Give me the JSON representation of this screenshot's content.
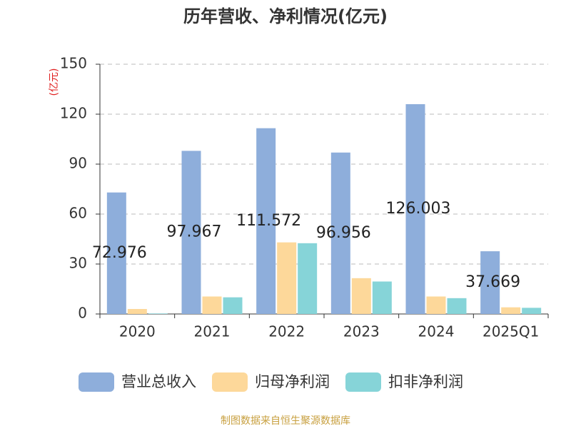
{
  "chart_data": {
    "type": "bar",
    "title": "历年营收、净利情况(亿元)",
    "y_label": "(亿元)",
    "categories": [
      "2020",
      "2021",
      "2022",
      "2023",
      "2024",
      "2025Q1"
    ],
    "series": [
      {
        "name": "营业总收入",
        "color": "#8eaedb",
        "values": [
          72.976,
          97.967,
          111.572,
          96.956,
          126.003,
          37.669
        ]
      },
      {
        "name": "归母净利润",
        "color": "#fdd89a",
        "values": [
          3,
          10.5,
          43,
          21.5,
          10.5,
          4
        ]
      },
      {
        "name": "扣非净利润",
        "color": "#86d4d8",
        "values": [
          0.3,
          10,
          42.5,
          19.5,
          9.5,
          3.7
        ]
      }
    ],
    "ylim": [
      0,
      150
    ],
    "yticks": [
      0,
      30,
      60,
      90,
      120,
      150
    ],
    "grid": true,
    "source": "制图数据来自恒生聚源数据库"
  }
}
